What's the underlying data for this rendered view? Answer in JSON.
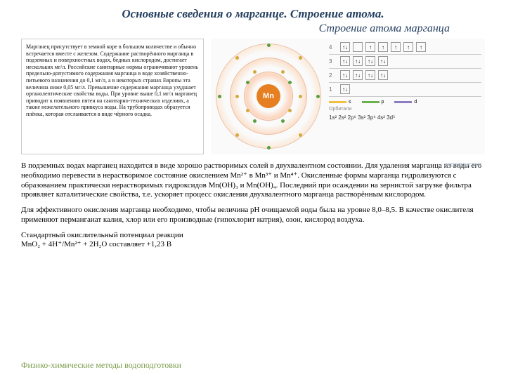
{
  "title": "Основные сведения о марганце. Строение атома.",
  "subtitle": "Строение атома марганца",
  "textbox": "Марганец присутствует в земной коре в большом количестве и обычно встречается вместе с железом. Содержание растворённого марганца в подземных и поверхностных водах, бедных кислородом, достигает нескольких мг/л. Российские санитарные нормы ограничивают уровень предельно-допустимого содержания марганца в воде хозяйственно-питьевого назначения до 0,1 мг/л, а в некоторых странах Европы эта величина ниже 0,05 мг/л. Превышение содержания марганца ухудшает органолептические свойства воды. При уровне выше 0,1 мг/л марганец приводит к появлению пятен на санитарно-технических изделиях, а также нежелательного привкуса воды. На трубопроводах образуется плёнка, которая отслаивается в виде чёрного осадка.",
  "nucleus": "Mn",
  "orbitals": {
    "rows": [
      {
        "label": "4",
        "boxes": [
          "↑↓",
          "",
          "↑",
          "↑",
          "↑",
          "↑",
          "↑"
        ]
      },
      {
        "label": "3",
        "boxes": [
          "↑↓",
          "↑↓",
          "↑↓",
          "↑↓"
        ]
      },
      {
        "label": "2",
        "boxes": [
          "↑↓",
          "↑↓",
          "↑↓",
          "↑↓"
        ]
      },
      {
        "label": "1",
        "boxes": [
          "↑↓"
        ]
      }
    ],
    "legend": [
      {
        "color": "#f0c040",
        "label": "s"
      },
      {
        "color": "#6ab04c",
        "label": "p"
      },
      {
        "color": "#8e7cc3",
        "label": "d"
      }
    ],
    "caption": "Орбитали",
    "config": "1s² 2s² 2p⁶ 3s² 3p⁶ 4s² 3d⁵"
  },
  "watermark": "ЭКОЕДИНСТВО",
  "body": {
    "p1": "В подземных водах марганец находится в виде хорошо растворимых солей в двухвалентном состоянии. Для удаления марганца из воды его необходимо перевести в нерастворимое состояние окислением Mn²⁺ в Mn³⁺ и Mn⁴⁺. Окисленные формы марганца гидролизуются с образованием практически нерастворимых гидроксидов Mn(OH)₃ и Mn(OH)₄. Последний при осаждении на зернистой загрузке фильтра проявляет каталитические свойства, т.е. ускоряет процесс окисления двухвалентного марганца растворённым кислородом.",
    "p2": "Для эффективного окисления марганца необходимо, чтобы величина рН очищаемой воды была на уровне 8,0–8,5. В качестве окислителя применяют перманганат калия, хлор или его производные (гипохлорит натрия), озон, кислород воздуха.",
    "p3_label": "Стандартный окислительный потенциал реакции",
    "p3_formula": "MnO₂ + 4H⁺/Mn²⁺ + 2H₂O  составляет +1,23 В"
  },
  "footer": "Физико-химические методы водоподготовки"
}
